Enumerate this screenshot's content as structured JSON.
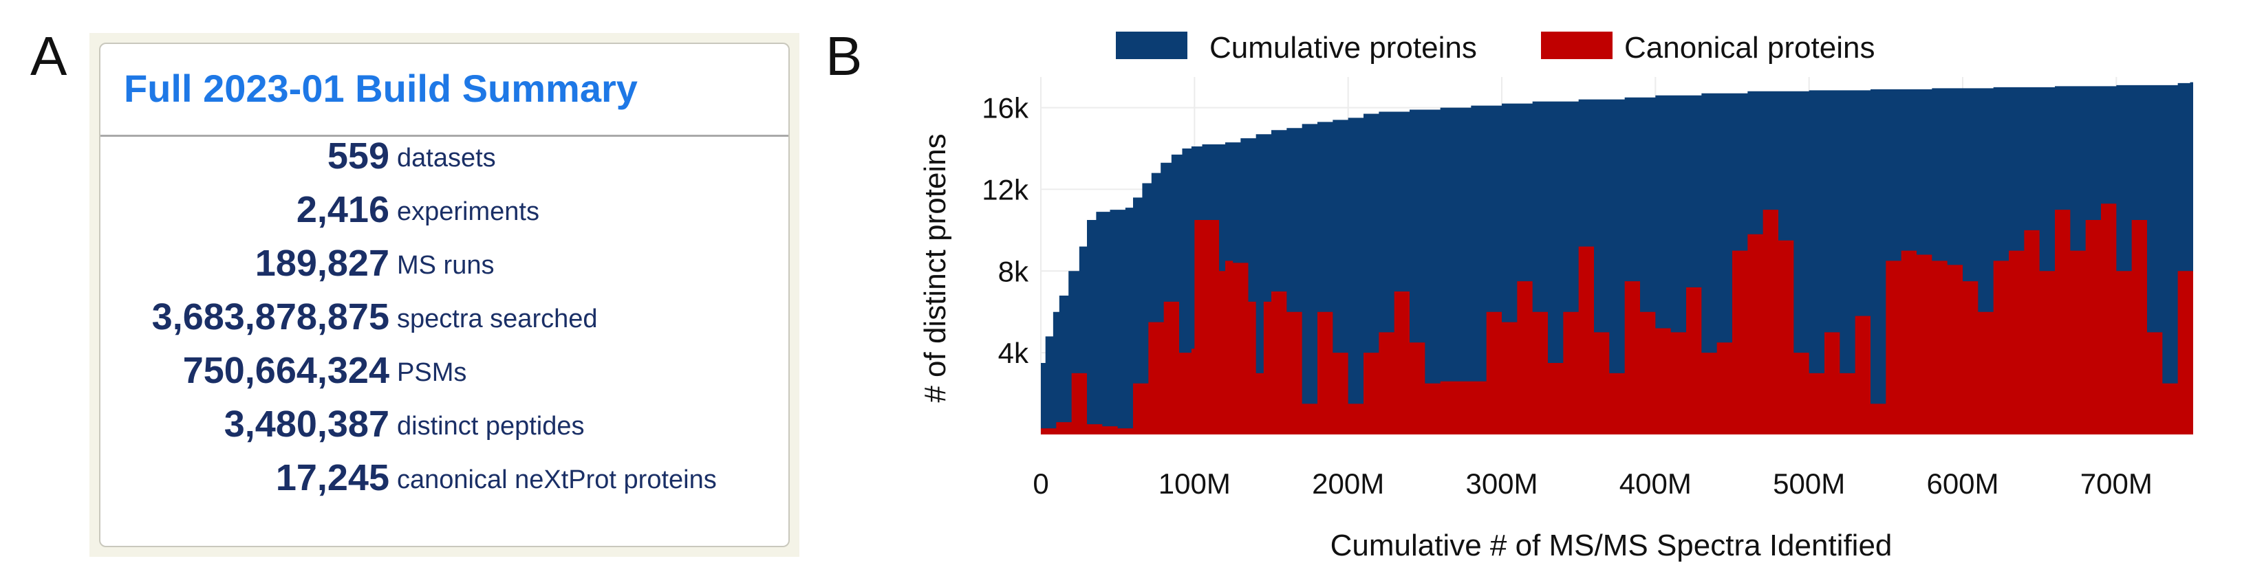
{
  "panel_a": {
    "letter": "A",
    "title": "Full 2023-01 Build Summary",
    "stats": [
      {
        "value": "559",
        "label": "datasets"
      },
      {
        "value": "2,416",
        "label": "experiments"
      },
      {
        "value": "189,827",
        "label": "MS runs"
      },
      {
        "value": "3,683,878,875",
        "label": "spectra searched"
      },
      {
        "value": "750,664,324",
        "label": "PSMs"
      },
      {
        "value": "3,480,387",
        "label": "distinct peptides"
      },
      {
        "value": "17,245",
        "label": "canonical neXtProt proteins"
      }
    ]
  },
  "panel_b": {
    "letter": "B"
  },
  "colors": {
    "title_blue": "#1e78e6",
    "stat_navy": "#1a2f66",
    "cumulative": "#0b3d73",
    "canonical": "#c00000"
  },
  "chart_data": {
    "type": "area",
    "title": "",
    "xlabel": "Cumulative # of MS/MS Spectra Identified",
    "ylabel": "# of distinct proteins",
    "xlim": [
      0,
      750
    ],
    "x_unit": "M spectra",
    "ylim": [
      0,
      17500
    ],
    "x_ticks": [
      0,
      100,
      200,
      300,
      400,
      500,
      600,
      700
    ],
    "x_tick_labels": [
      "0",
      "100M",
      "200M",
      "300M",
      "400M",
      "500M",
      "600M",
      "700M"
    ],
    "y_ticks": [
      4000,
      8000,
      12000,
      16000
    ],
    "y_tick_labels": [
      "4k",
      "8k",
      "12k",
      "16k"
    ],
    "grid": true,
    "legend": "top",
    "series": [
      {
        "name": "Cumulative proteins",
        "x": [
          0,
          3,
          8,
          12,
          18,
          25,
          30,
          36,
          45,
          55,
          60,
          66,
          72,
          78,
          85,
          92,
          98,
          105,
          120,
          130,
          140,
          150,
          160,
          170,
          180,
          190,
          200,
          210,
          220,
          240,
          260,
          280,
          300,
          320,
          350,
          380,
          400,
          430,
          460,
          500,
          540,
          580,
          620,
          660,
          700,
          740,
          748
        ],
        "values": [
          3500,
          4800,
          6000,
          6800,
          8000,
          9200,
          10500,
          10900,
          11000,
          11100,
          11600,
          12300,
          12800,
          13300,
          13700,
          14000,
          14100,
          14200,
          14300,
          14500,
          14700,
          14900,
          15000,
          15200,
          15300,
          15400,
          15500,
          15700,
          15800,
          15900,
          16000,
          16100,
          16200,
          16300,
          16400,
          16500,
          16600,
          16700,
          16800,
          16850,
          16900,
          16950,
          17000,
          17050,
          17100,
          17200,
          17245
        ]
      },
      {
        "name": "Canonical proteins",
        "x": [
          0,
          10,
          20,
          30,
          40,
          50,
          60,
          70,
          80,
          90,
          98,
          100,
          104,
          110,
          116,
          120,
          125,
          130,
          135,
          140,
          145,
          150,
          160,
          170,
          180,
          190,
          200,
          210,
          220,
          230,
          240,
          250,
          260,
          270,
          280,
          290,
          300,
          310,
          320,
          330,
          340,
          350,
          360,
          370,
          380,
          390,
          400,
          410,
          420,
          430,
          440,
          450,
          460,
          470,
          480,
          490,
          500,
          510,
          520,
          530,
          540,
          550,
          560,
          570,
          580,
          590,
          600,
          610,
          620,
          630,
          640,
          650,
          660,
          670,
          680,
          690,
          700,
          710,
          720,
          730,
          740,
          748
        ],
        "values": [
          300,
          600,
          3000,
          500,
          400,
          300,
          2500,
          5500,
          6500,
          4000,
          4200,
          10500,
          10500,
          10500,
          8000,
          8500,
          8400,
          8400,
          6500,
          3000,
          6500,
          7000,
          6000,
          1500,
          6000,
          4000,
          1500,
          4000,
          5000,
          7000,
          4500,
          2500,
          2600,
          2600,
          2600,
          6000,
          5500,
          7500,
          6000,
          3500,
          6000,
          9200,
          5000,
          3000,
          7500,
          6000,
          5200,
          5000,
          7200,
          4000,
          4500,
          9000,
          9800,
          11000,
          9500,
          4000,
          3000,
          5000,
          3000,
          5800,
          1500,
          8500,
          9000,
          8800,
          8500,
          8300,
          7500,
          6000,
          8500,
          9000,
          10000,
          8000,
          11000,
          9000,
          10500,
          11300,
          8000,
          10500,
          5000,
          2500,
          8000,
          8000
        ]
      }
    ]
  }
}
